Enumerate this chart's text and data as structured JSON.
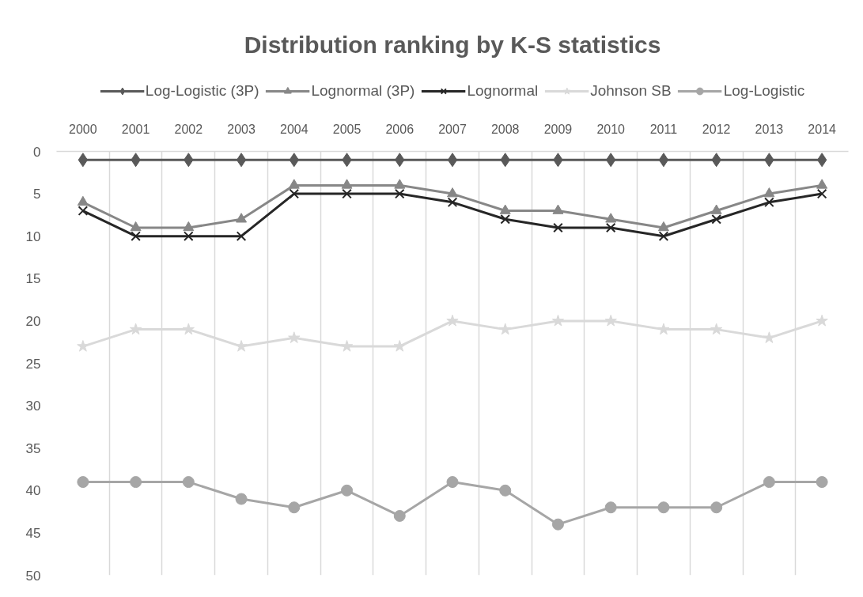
{
  "chart_data": {
    "type": "line",
    "title": "Distribution ranking by K-S statistics",
    "categories": [
      "2000",
      "2001",
      "2002",
      "2003",
      "2004",
      "2005",
      "2006",
      "2007",
      "2008",
      "2009",
      "2010",
      "2011",
      "2012",
      "2013",
      "2014"
    ],
    "ylim": [
      50,
      0
    ],
    "yticks": [
      0,
      5,
      10,
      15,
      20,
      25,
      30,
      35,
      40,
      45,
      50
    ],
    "grid": "x",
    "legend": "top",
    "line_style": "solid",
    "series": [
      {
        "name": "Log-Logistic (3P)",
        "color": "#595959",
        "marker": "diamond",
        "values": [
          1,
          1,
          1,
          1,
          1,
          1,
          1,
          1,
          1,
          1,
          1,
          1,
          1,
          1,
          1
        ]
      },
      {
        "name": "Lognormal (3P)",
        "color": "#878787",
        "marker": "triangle",
        "values": [
          6,
          9,
          9,
          8,
          4,
          4,
          4,
          5,
          7,
          7,
          8,
          9,
          7,
          5,
          4
        ]
      },
      {
        "name": "Lognormal",
        "color": "#262626",
        "marker": "cross",
        "values": [
          7,
          10,
          10,
          10,
          5,
          5,
          5,
          6,
          8,
          9,
          9,
          10,
          8,
          6,
          5
        ]
      },
      {
        "name": "Johnson SB",
        "color": "#d9d9d9",
        "marker": "star",
        "values": [
          23,
          21,
          21,
          23,
          22,
          23,
          23,
          20,
          21,
          20,
          20,
          21,
          21,
          22,
          20
        ]
      },
      {
        "name": "Log-Logistic",
        "color": "#a6a6a6",
        "marker": "circle",
        "values": [
          39,
          39,
          39,
          41,
          42,
          40,
          43,
          39,
          40,
          44,
          42,
          42,
          42,
          39,
          39
        ]
      }
    ]
  }
}
